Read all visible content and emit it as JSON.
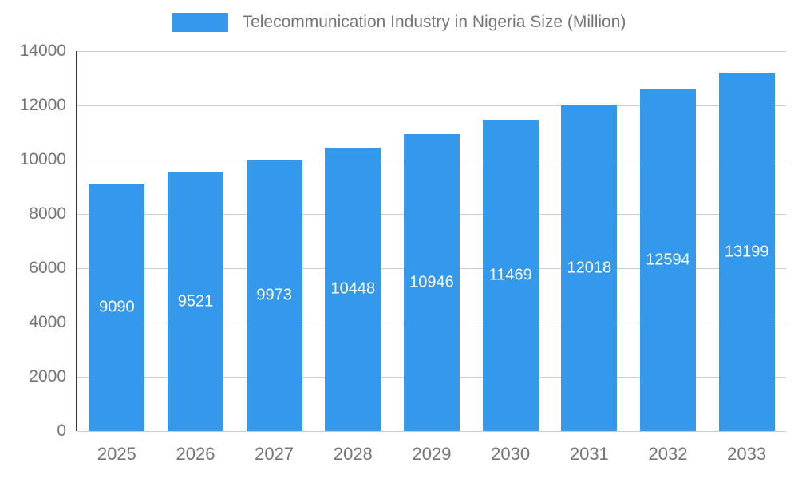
{
  "legend": {
    "swatch_color": "#3498eb"
  },
  "chart_data": {
    "type": "bar",
    "title": "Telecommunication Industry in Nigeria Size (Million)",
    "categories": [
      "2025",
      "2026",
      "2027",
      "2028",
      "2029",
      "2030",
      "2031",
      "2032",
      "2033"
    ],
    "values": [
      9090,
      9521,
      9973,
      10448,
      10946,
      11469,
      12018,
      12594,
      13199
    ],
    "xlabel": "",
    "ylabel": "",
    "ylim": [
      0,
      14000
    ],
    "yticks": [
      0,
      2000,
      4000,
      6000,
      8000,
      10000,
      12000,
      14000
    ],
    "grid": true,
    "legend_position": "top",
    "bar_color": "#3498eb",
    "value_label_color": "#ffffff",
    "axis_text_color": "#757575",
    "gridline_color": "#cccccc",
    "axis_line_color": "#333333",
    "background_color": "#ffffff"
  }
}
